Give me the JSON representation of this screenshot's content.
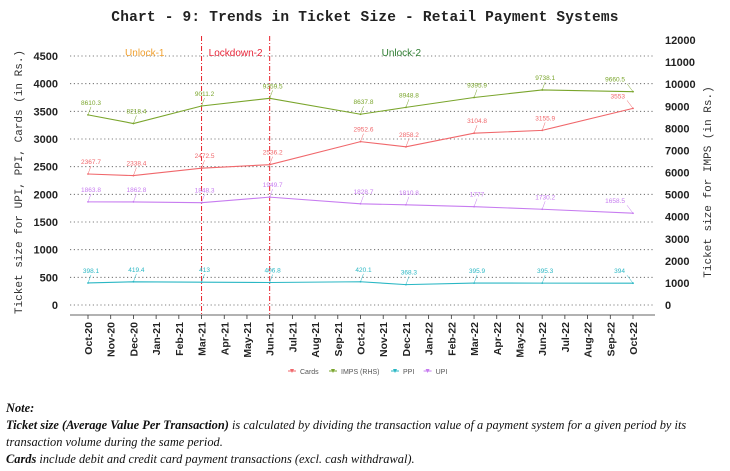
{
  "chart_data": {
    "type": "line",
    "title": "Chart - 9: Trends in Ticket Size - Retail Payment Systems",
    "xlabel": "",
    "ylabel": "Ticket size for UPI, PPI, Cards (in Rs.)",
    "ylabel_right": "Ticket size for IMPS (in Rs.)",
    "ylim": [
      0,
      4500
    ],
    "ylim_right": [
      0,
      12000
    ],
    "yticks": [
      0,
      500,
      1000,
      1500,
      2000,
      2500,
      3000,
      3500,
      4000,
      4500
    ],
    "yticks_right": [
      0,
      1000,
      2000,
      3000,
      4000,
      5000,
      6000,
      7000,
      8000,
      9000,
      10000,
      11000,
      12000
    ],
    "x_categories": [
      "Oct-20",
      "Nov-20",
      "Dec-20",
      "Jan-21",
      "Feb-21",
      "Mar-21",
      "Apr-21",
      "May-21",
      "Jun-21",
      "Jul-21",
      "Aug-21",
      "Sep-21",
      "Oct-21",
      "Nov-21",
      "Dec-21",
      "Jan-22",
      "Feb-22",
      "Mar-22",
      "Apr-22",
      "May-22",
      "Jun-22",
      "Jul-22",
      "Aug-22",
      "Sep-22",
      "Oct-22"
    ],
    "x": [
      "Oct-20",
      "Dec-20",
      "Mar-21",
      "Jun-21",
      "Oct-21",
      "Dec-21",
      "Mar-22",
      "Jun-22",
      "Oct-22"
    ],
    "grid": "horizontal dotted",
    "legend_position": "bottom",
    "series": [
      {
        "name": "Cards",
        "axis": "left",
        "color": "#f0676b",
        "values": [
          2367.7,
          2338.4,
          2472.5,
          2536.2,
          2952.6,
          2858.2,
          3104.8,
          3155.9,
          3553
        ],
        "labels": [
          "2367.7",
          "2338.4",
          "2472.5",
          "2536.2",
          "2952.6",
          "2858.2",
          "3104.8",
          "3155.9",
          "3553"
        ]
      },
      {
        "name": "IMPS (RHS)",
        "axis": "right",
        "color": "#7aa52c",
        "values": [
          8610.3,
          8218.4,
          9011.2,
          9359.5,
          8637.8,
          8948.8,
          9395.9,
          9738.1,
          9660.5
        ],
        "labels": [
          "8610.3",
          "8218.4",
          "9011.2",
          "9359.5",
          "8637.8",
          "8948.8",
          "9395.9",
          "9738.1",
          "9660.5"
        ]
      },
      {
        "name": "PPI",
        "axis": "left",
        "color": "#2ab7c4",
        "values": [
          398.1,
          419.4,
          413,
          406.8,
          420.1,
          368.3,
          395.9,
          395.3,
          394
        ],
        "labels": [
          "398.1",
          "419.4",
          "413",
          "406.8",
          "420.1",
          "368.3",
          "395.9",
          "395.3",
          "394"
        ]
      },
      {
        "name": "UPI",
        "axis": "left",
        "color": "#c77cf0",
        "values": [
          1863.8,
          1862.8,
          1848.3,
          1949.7,
          1828.7,
          1810.8,
          1777,
          1730.2,
          1658.5
        ],
        "labels": [
          "1863.8",
          "1862.8",
          "1848.3",
          "1949.7",
          "1828.7",
          "1810.8",
          "1777",
          "1730.2",
          "1658.5"
        ]
      }
    ],
    "annotations": {
      "vlines": [
        {
          "x": "Mar-21",
          "color": "#e8202a"
        },
        {
          "x": "Jun-21",
          "color": "#e8202a"
        }
      ],
      "phases": [
        {
          "label": "Unlock-1",
          "color": "#f0a030",
          "between": [
            "Oct-20",
            "Mar-21"
          ]
        },
        {
          "label": "Lockdown-2",
          "color": "#e8283c",
          "between": [
            "Mar-21",
            "Jun-21"
          ]
        },
        {
          "label": "Unlock-2",
          "color": "#2f7d32",
          "between": [
            "Jun-21",
            "Oct-22"
          ]
        }
      ]
    }
  },
  "notes": {
    "heading": "Note:",
    "line1_bold": "Ticket size (Average Value Per Transaction)",
    "line1_rest": " is calculated by dividing the transaction value of a payment system for a given period by its transaction volume during the same period.",
    "line2_bold": "Cards",
    "line2_rest": " include debit and credit card payment transactions (excl. cash withdrawal)."
  }
}
